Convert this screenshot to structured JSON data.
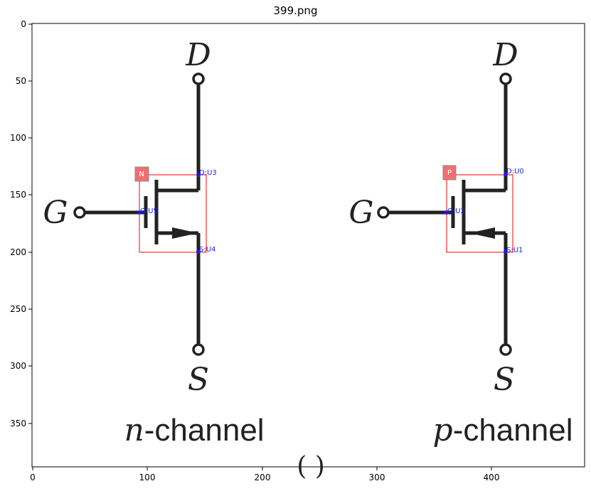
{
  "title": "399.png",
  "axes": {
    "x_ticks": [
      "0",
      "100",
      "200",
      "300",
      "400"
    ],
    "y_ticks": [
      "0",
      "50",
      "100",
      "150",
      "200",
      "250",
      "300",
      "350"
    ]
  },
  "image": {
    "left_transistor": {
      "drain": "D",
      "gate": "G",
      "source": "S",
      "caption_var": "n",
      "caption_text": "-channel"
    },
    "right_transistor": {
      "drain": "D",
      "gate": "G",
      "source": "S",
      "caption_var": "p",
      "caption_text": "-channel"
    },
    "bottom_fragment": "( )"
  },
  "annotations": {
    "left": {
      "tag": "N",
      "drain_pin": "D:U3",
      "gate_pin": "G:U5",
      "source_pin": "S:U4"
    },
    "right": {
      "tag": "P",
      "drain_pin": "D:U0",
      "gate_pin": "G:U2",
      "source_pin": "S:U1"
    }
  },
  "colors": {
    "box": "#ff0000",
    "pin": "#1a1aff",
    "tag_fill": "#f07070",
    "ink": "#222222"
  }
}
